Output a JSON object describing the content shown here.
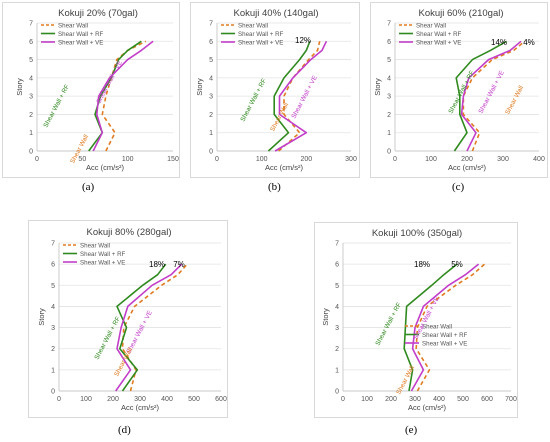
{
  "colors": {
    "shear_wall": "#e07b20",
    "shear_wall_rf": "#2f8a1e",
    "shear_wall_ve": "#c23ec9"
  },
  "chart_data": [
    {
      "type": "line",
      "subfigure": "(a)",
      "title": "Kokuji 20% (70gal)",
      "xlabel": "Acc (cm/s²)",
      "ylabel": "Story",
      "xlim": [
        0,
        150
      ],
      "xticks": [
        0,
        50,
        100,
        150
      ],
      "ylim": [
        0,
        7
      ],
      "yticks": [
        0,
        1,
        2,
        3,
        4,
        5,
        6,
        7
      ],
      "legend": [
        "Shear Wall",
        "Shear Wall + RF",
        "Shear Wall + VE"
      ],
      "series": [
        {
          "name": "Shear Wall",
          "x": [
            76,
            86,
            72,
            76,
            82,
            88,
            100,
            120
          ],
          "y": [
            0,
            1,
            2,
            3,
            4,
            5,
            5.5,
            6
          ]
        },
        {
          "name": "Shear Wall + RF",
          "x": [
            57,
            72,
            64,
            70,
            82,
            90,
            100,
            115
          ],
          "y": [
            0,
            1,
            2,
            3,
            4,
            5,
            5.5,
            6
          ]
        },
        {
          "name": "Shear Wall + VE",
          "x": [
            62,
            72,
            66,
            68,
            80,
            100,
            115,
            128
          ],
          "y": [
            0,
            1,
            2,
            3,
            4,
            5,
            5.5,
            6
          ]
        }
      ],
      "annotations": [
        {
          "text": "Shear Wall + RF",
          "color": "shear_wall_rf"
        },
        {
          "text": "Shear Wall + VE",
          "color": "shear_wall_ve"
        },
        {
          "text": "Shear Wall",
          "color": "shear_wall"
        }
      ]
    },
    {
      "type": "line",
      "subfigure": "(b)",
      "title": "Kokuji 40% (140gal)",
      "xlabel": "Acc (cm/s²)",
      "ylabel": "Story",
      "xlim": [
        0,
        300
      ],
      "xticks": [
        0,
        100,
        200,
        300
      ],
      "ylim": [
        0,
        7
      ],
      "yticks": [
        0,
        1,
        2,
        3,
        4,
        5,
        6,
        7
      ],
      "legend": [
        "Shear Wall",
        "Shear Wall + RF",
        "Shear Wall + VE"
      ],
      "series": [
        {
          "name": "Shear Wall",
          "x": [
            138,
            185,
            150,
            150,
            170,
            205,
            225,
            230
          ],
          "y": [
            0,
            1,
            2,
            3,
            4,
            5,
            5.5,
            6
          ]
        },
        {
          "name": "Shear Wall + RF",
          "x": [
            115,
            160,
            128,
            128,
            150,
            185,
            200,
            208
          ],
          "y": [
            0,
            1,
            2,
            3,
            4,
            5,
            5.5,
            6
          ]
        },
        {
          "name": "Shear Wall + VE",
          "x": [
            130,
            200,
            140,
            140,
            170,
            210,
            235,
            245
          ],
          "y": [
            0,
            1,
            2,
            3,
            4,
            5,
            5.5,
            6
          ]
        }
      ],
      "annotations": [
        {
          "text": "12%",
          "color": "#000000"
        },
        {
          "text": "Shear Wall + RF",
          "color": "shear_wall_rf"
        },
        {
          "text": "Shear Wall + VE",
          "color": "shear_wall_ve"
        },
        {
          "text": "Shear Wall",
          "color": "shear_wall"
        }
      ]
    },
    {
      "type": "line",
      "subfigure": "(c)",
      "title": "Kokuji 60% (210gal)",
      "xlabel": "Acc (cm/s²)",
      "ylabel": "Story",
      "xlim": [
        0,
        400
      ],
      "xticks": [
        0,
        100,
        200,
        300,
        400
      ],
      "ylim": [
        0,
        7
      ],
      "yticks": [
        0,
        1,
        2,
        3,
        4,
        5,
        6,
        7
      ],
      "legend": [
        "Shear Wall",
        "Shear Wall + RF",
        "Shear Wall + VE"
      ],
      "series": [
        {
          "name": "Shear Wall",
          "x": [
            215,
            235,
            190,
            190,
            215,
            270,
            330,
            360
          ],
          "y": [
            0,
            1,
            2,
            3,
            4,
            5,
            5.5,
            6
          ]
        },
        {
          "name": "Shear Wall + RF",
          "x": [
            165,
            200,
            180,
            180,
            170,
            215,
            265,
            310
          ],
          "y": [
            0,
            1,
            2,
            3,
            4,
            5,
            5.5,
            6
          ]
        },
        {
          "name": "Shear Wall + VE",
          "x": [
            200,
            225,
            185,
            190,
            205,
            260,
            320,
            350
          ],
          "y": [
            0,
            1,
            2,
            3,
            4,
            5,
            5.5,
            6
          ]
        }
      ],
      "annotations": [
        {
          "text": "14%",
          "color": "#000000"
        },
        {
          "text": "4%",
          "color": "#000000"
        },
        {
          "text": "Shear Wall + RF",
          "color": "shear_wall_rf"
        },
        {
          "text": "Shear Wall + VE",
          "color": "shear_wall_ve"
        },
        {
          "text": "Shear Wall",
          "color": "shear_wall"
        }
      ]
    },
    {
      "type": "line",
      "subfigure": "(d)",
      "title": "Kokuji 80% (280gal)",
      "xlabel": "Acc (cm/s²)",
      "ylabel": "Story",
      "xlim": [
        0,
        600
      ],
      "xticks": [
        0,
        100,
        200,
        300,
        400,
        500,
        600
      ],
      "ylim": [
        0,
        7
      ],
      "yticks": [
        0,
        1,
        2,
        3,
        4,
        5,
        6,
        7
      ],
      "legend": [
        "Shear Wall",
        "Shear Wall + RF",
        "Shear Wall + VE"
      ],
      "series": [
        {
          "name": "Shear Wall",
          "x": [
            265,
            285,
            235,
            240,
            280,
            380,
            440,
            475
          ],
          "y": [
            0,
            1,
            2,
            3,
            4,
            5,
            5.5,
            6
          ]
        },
        {
          "name": "Shear Wall + RF",
          "x": [
            235,
            290,
            225,
            250,
            215,
            310,
            365,
            395
          ],
          "y": [
            0,
            1,
            2,
            3,
            4,
            5,
            5.5,
            6
          ]
        },
        {
          "name": "Shear Wall + VE",
          "x": [
            210,
            265,
            215,
            230,
            255,
            345,
            415,
            455
          ],
          "y": [
            0,
            1,
            2,
            3,
            4,
            5,
            5.5,
            6
          ]
        }
      ],
      "annotations": [
        {
          "text": "18%",
          "color": "#000000"
        },
        {
          "text": "7%",
          "color": "#000000"
        },
        {
          "text": "Shear Wall + RF",
          "color": "shear_wall_rf"
        },
        {
          "text": "Shear Wall + VE",
          "color": "shear_wall_ve"
        },
        {
          "text": "Shear Wall",
          "color": "shear_wall"
        }
      ]
    },
    {
      "type": "line",
      "subfigure": "(e)",
      "title": "Kokuji 100% (350gal)",
      "xlabel": "Acc (cm/s²)",
      "ylabel": "Story",
      "xlim": [
        0,
        700
      ],
      "xticks": [
        0,
        100,
        200,
        300,
        400,
        500,
        600,
        700
      ],
      "ylim": [
        0,
        7
      ],
      "yticks": [
        0,
        1,
        2,
        3,
        4,
        5,
        6,
        7
      ],
      "legend": [
        "Shear Wall",
        "Shear Wall + RF",
        "Shear Wall + VE"
      ],
      "series": [
        {
          "name": "Shear Wall",
          "x": [
            310,
            360,
            305,
            310,
            350,
            470,
            540,
            590
          ],
          "y": [
            0,
            1,
            2,
            3,
            4,
            5,
            5.5,
            6
          ]
        },
        {
          "name": "Shear Wall + RF",
          "x": [
            275,
            290,
            255,
            260,
            265,
            370,
            420,
            475
          ],
          "y": [
            0,
            1,
            2,
            3,
            4,
            5,
            5.5,
            6
          ]
        },
        {
          "name": "Shear Wall + VE",
          "x": [
            285,
            335,
            290,
            300,
            335,
            440,
            510,
            565
          ],
          "y": [
            0,
            1,
            2,
            3,
            4,
            5,
            5.5,
            6
          ]
        }
      ],
      "annotations": [
        {
          "text": "18%",
          "color": "#000000"
        },
        {
          "text": "5%",
          "color": "#000000"
        },
        {
          "text": "Shear Wall + RF",
          "color": "shear_wall_rf"
        },
        {
          "text": "Shear Wall + VE",
          "color": "shear_wall_ve"
        },
        {
          "text": "Shear Wall",
          "color": "shear_wall"
        }
      ]
    }
  ]
}
